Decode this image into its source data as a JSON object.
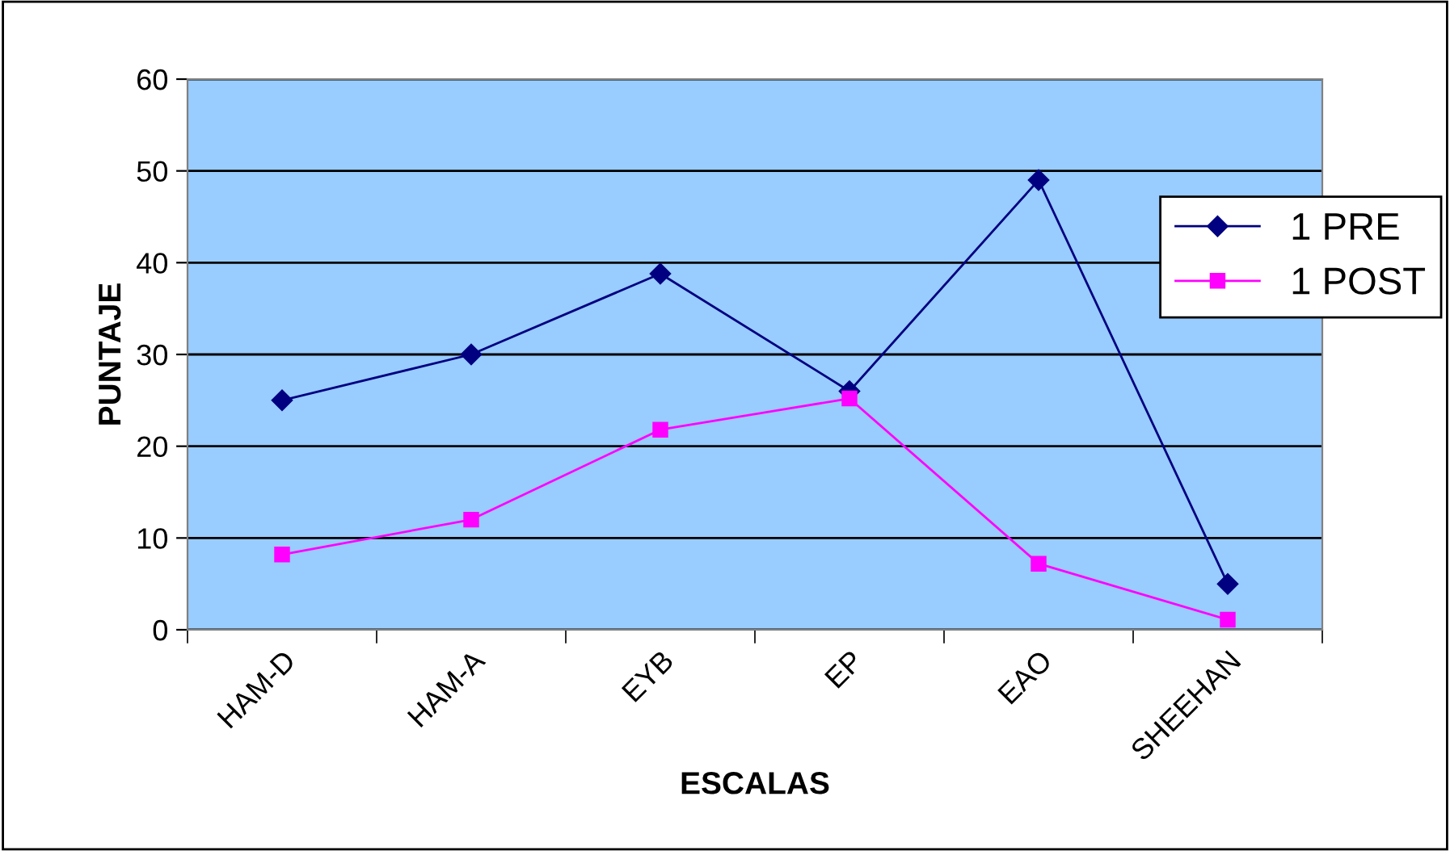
{
  "chart_data": {
    "type": "line",
    "xlabel": "ESCALAS",
    "ylabel": "PUNTAJE",
    "categories": [
      "HAM-D",
      "HAM-A",
      "EYB",
      "EP",
      "EAO",
      "SHEEHAN"
    ],
    "series": [
      {
        "name": "1 PRE",
        "color": "#000080",
        "marker": "diamond",
        "values": [
          25,
          30,
          38.8,
          26,
          49,
          5
        ]
      },
      {
        "name": "1 POST",
        "color": "#ff00ff",
        "marker": "square",
        "values": [
          8.2,
          12,
          21.8,
          25.2,
          7.2,
          1.1
        ]
      }
    ],
    "ylim": [
      0,
      60
    ],
    "yticks": [
      0,
      10,
      20,
      30,
      40,
      50,
      60
    ],
    "grid": "y",
    "legend": "right"
  }
}
